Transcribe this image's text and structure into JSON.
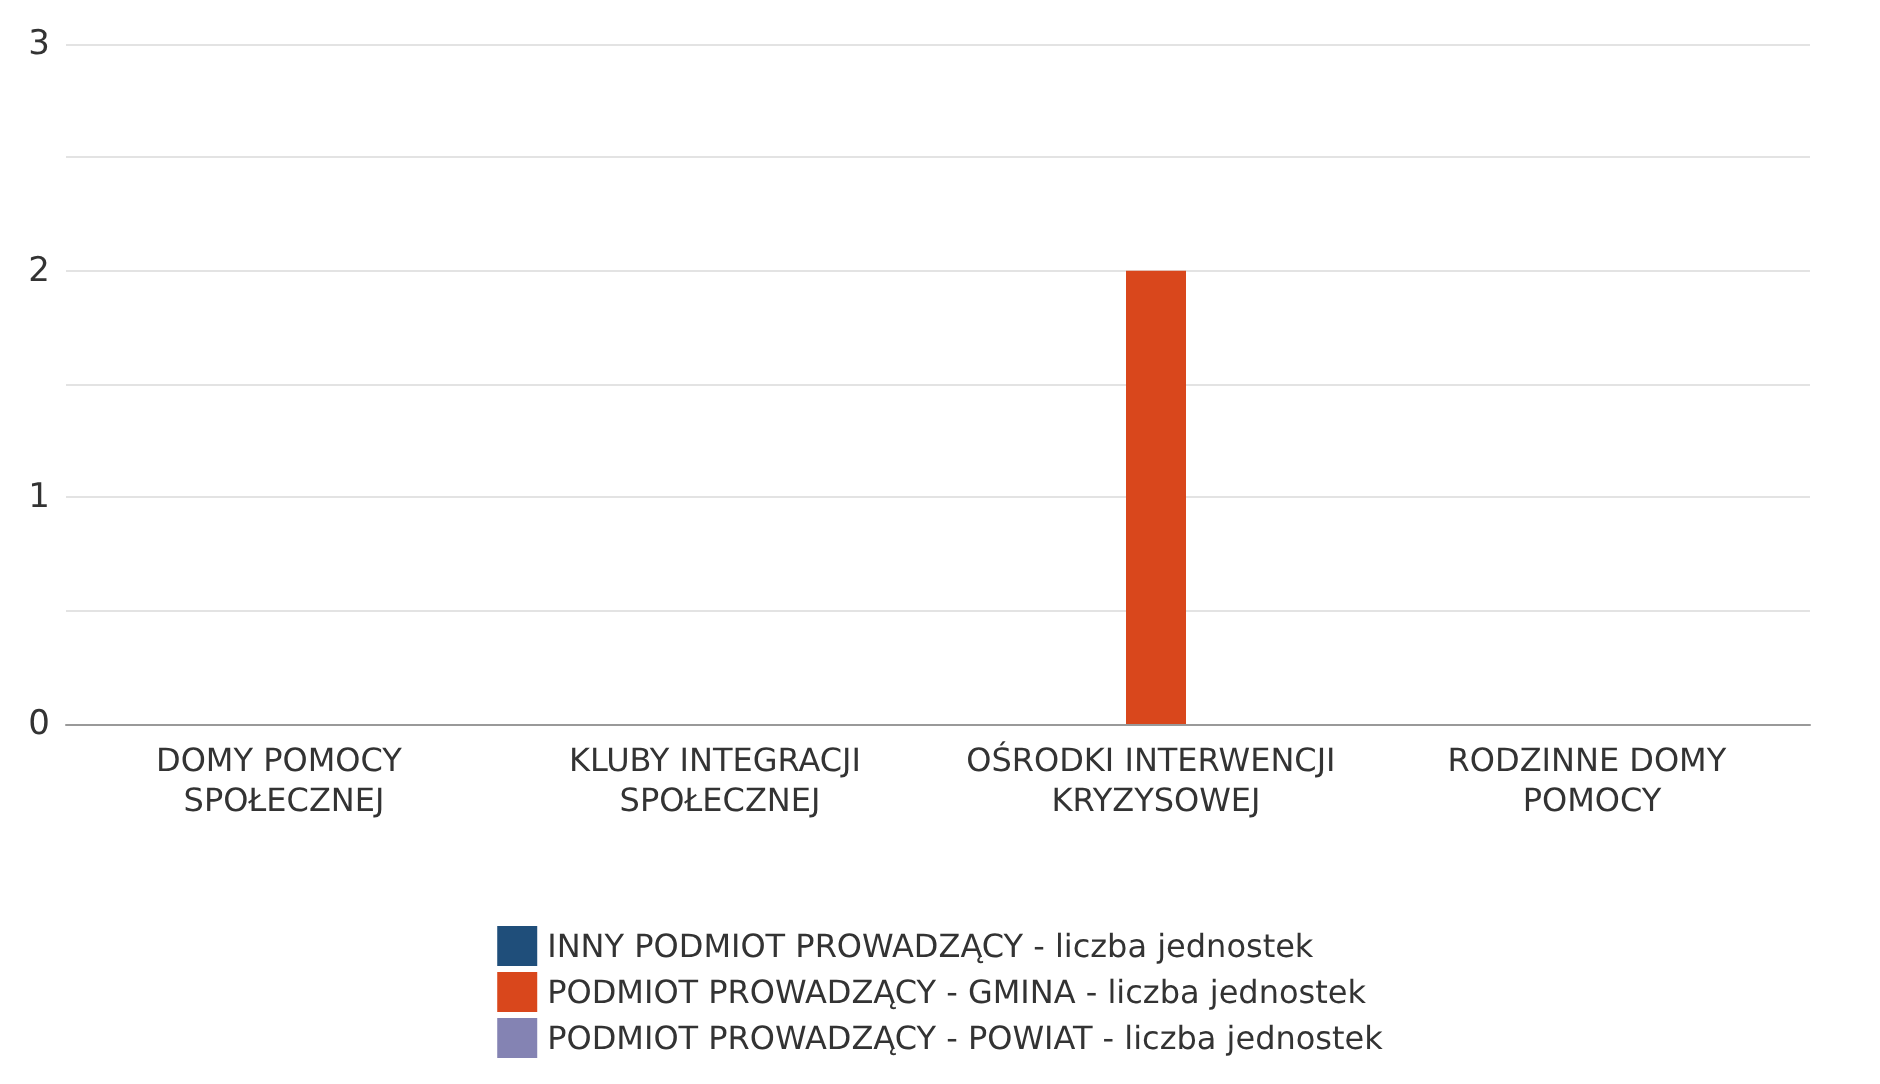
{
  "chart_data": {
    "type": "bar",
    "categories": [
      "DOMY POMOCY SPOŁECZNEJ",
      "KLUBY INTEGRACJI SPOŁECZNEJ",
      "OŚRODKI INTERWENCJI KRYZYSOWEJ",
      "RODZINNE DOMY POMOCY"
    ],
    "series": [
      {
        "name": "INNY PODMIOT PROWADZĄCY - liczba jednostek",
        "color": "#1f4e7a",
        "values": [
          0,
          0,
          0,
          0
        ]
      },
      {
        "name": "PODMIOT PROWADZĄCY - GMINA - liczba jednostek",
        "color": "#d9471c",
        "values": [
          0,
          0,
          2,
          0
        ]
      },
      {
        "name": "PODMIOT PROWADZĄCY - POWIAT - liczba jednostek",
        "color": "#8483b3",
        "values": [
          0,
          0,
          0,
          0
        ]
      }
    ],
    "ylim": [
      0,
      3
    ],
    "yticks": [
      0,
      1,
      2,
      3
    ],
    "grid": "y",
    "legend": "bottom"
  }
}
